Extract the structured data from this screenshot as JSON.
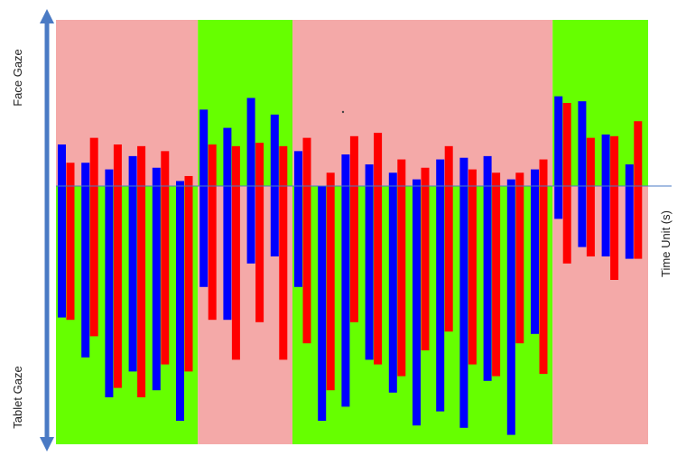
{
  "chart_data": {
    "type": "bar",
    "y_top_label": "Face Gaze",
    "y_bottom_label": "Tablet Gaze",
    "x_label": "Time Unit (s)",
    "colors": {
      "face_region": "#f4a9a8",
      "tablet_region": "#66ff00",
      "series_a": "#0000ff",
      "series_b": "#ff0000",
      "axis": "#4a7ac4"
    },
    "background_regions": [
      {
        "x_start": 0,
        "x_end": 6,
        "top": "face",
        "bottom": "tablet"
      },
      {
        "x_start": 6,
        "x_end": 10,
        "top": "tablet",
        "bottom": "face"
      },
      {
        "x_start": 10,
        "x_end": 21,
        "top": "face",
        "bottom": "tablet"
      },
      {
        "x_start": 21,
        "x_end": 25.6,
        "top": "tablet",
        "bottom": "face"
      }
    ],
    "ylim": [
      -100,
      100
    ],
    "series": [
      {
        "color": "blue",
        "bars": [
          [
            0,
            25,
            -56
          ],
          [
            1,
            14,
            -73
          ],
          [
            2,
            10,
            -90
          ],
          [
            3,
            18,
            -79
          ],
          [
            4,
            11,
            -87
          ],
          [
            5,
            3,
            -100
          ],
          [
            6,
            46,
            -43
          ],
          [
            7,
            35,
            -57
          ],
          [
            8,
            53,
            -33
          ],
          [
            9,
            43,
            -30
          ],
          [
            10,
            21,
            -43
          ],
          [
            11,
            0,
            -100
          ],
          [
            12,
            19,
            -94
          ],
          [
            13,
            13,
            -74
          ],
          [
            14,
            8,
            -88
          ],
          [
            15,
            4,
            -102
          ],
          [
            16,
            16,
            -96
          ],
          [
            17,
            17,
            -103
          ],
          [
            18,
            18,
            -83
          ],
          [
            19,
            4,
            -106
          ],
          [
            20,
            10,
            -63
          ],
          [
            21,
            54,
            -14
          ],
          [
            22,
            51,
            -26
          ],
          [
            23,
            31,
            -30
          ],
          [
            24,
            13,
            -31
          ]
        ]
      },
      {
        "color": "red",
        "bars": [
          [
            0,
            14,
            -57
          ],
          [
            1,
            29,
            -64
          ],
          [
            2,
            25,
            -86
          ],
          [
            3,
            24,
            -90
          ],
          [
            4,
            21,
            -76
          ],
          [
            5,
            6,
            -79
          ],
          [
            6,
            25,
            -57
          ],
          [
            7,
            24,
            -74
          ],
          [
            8,
            26,
            -58
          ],
          [
            9,
            24,
            -74
          ],
          [
            10,
            29,
            -67
          ],
          [
            11,
            8,
            -87
          ],
          [
            12,
            30,
            -58
          ],
          [
            13,
            32,
            -76
          ],
          [
            14,
            16,
            -81
          ],
          [
            15,
            11,
            -70
          ],
          [
            16,
            24,
            -62
          ],
          [
            17,
            10,
            -76
          ],
          [
            18,
            8,
            -81
          ],
          [
            19,
            8,
            -67
          ],
          [
            20,
            16,
            -80
          ],
          [
            21,
            50,
            -33
          ],
          [
            22,
            29,
            -30
          ],
          [
            23,
            30,
            -40
          ],
          [
            24,
            39,
            -31
          ]
        ]
      }
    ]
  }
}
